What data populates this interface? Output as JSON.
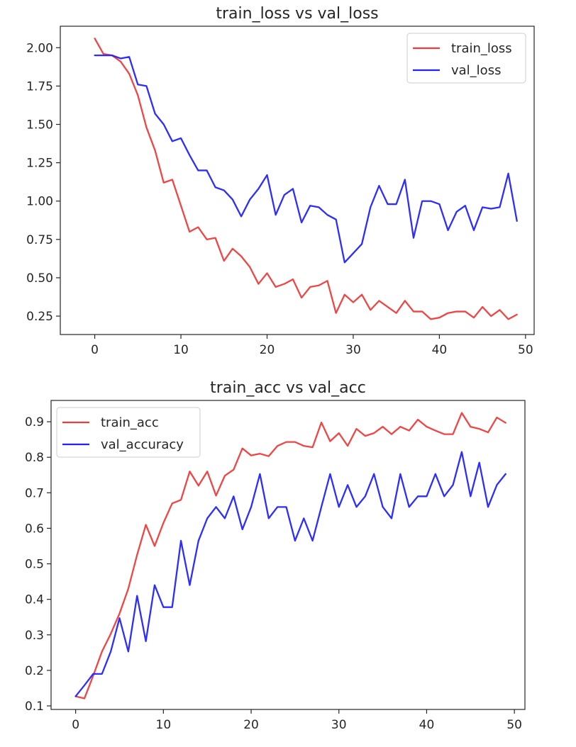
{
  "colors": {
    "train": "#ee3b3b",
    "val": "#2222ff",
    "axis": "#262626",
    "legend_border": "#cccccc"
  },
  "chart_data": [
    {
      "type": "line",
      "title": "train_loss vs val_loss",
      "xlabel": "",
      "ylabel": "",
      "xlim": [
        -4,
        51
      ],
      "ylim": [
        0.13,
        2.14
      ],
      "x_ticks": [
        0,
        10,
        20,
        30,
        40,
        50
      ],
      "y_ticks": [
        0.25,
        0.5,
        0.75,
        1.0,
        1.25,
        1.5,
        1.75,
        2.0
      ],
      "y_tick_labels": [
        "0.25",
        "0.50",
        "0.75",
        "1.00",
        "1.25",
        "1.50",
        "1.75",
        "2.00"
      ],
      "x_tick_labels": [
        "0",
        "10",
        "20",
        "30",
        "40",
        "50"
      ],
      "grid": false,
      "legend_position": "upper right",
      "x": [
        0,
        1,
        2,
        3,
        4,
        5,
        6,
        7,
        8,
        9,
        10,
        11,
        12,
        13,
        14,
        15,
        16,
        17,
        18,
        19,
        20,
        21,
        22,
        23,
        24,
        25,
        26,
        27,
        28,
        29,
        30,
        31,
        32,
        33,
        34,
        35,
        36,
        37,
        38,
        39,
        40,
        41,
        42,
        43,
        44,
        45,
        46,
        47,
        48,
        49
      ],
      "series": [
        {
          "name": "train_loss",
          "color_key": "train",
          "values": [
            2.06,
            1.96,
            1.95,
            1.91,
            1.83,
            1.69,
            1.48,
            1.33,
            1.12,
            1.14,
            0.97,
            0.8,
            0.83,
            0.75,
            0.76,
            0.61,
            0.69,
            0.64,
            0.57,
            0.46,
            0.53,
            0.44,
            0.46,
            0.49,
            0.37,
            0.44,
            0.45,
            0.48,
            0.27,
            0.39,
            0.34,
            0.39,
            0.29,
            0.35,
            0.31,
            0.27,
            0.35,
            0.28,
            0.28,
            0.23,
            0.24,
            0.27,
            0.28,
            0.28,
            0.24,
            0.31,
            0.25,
            0.29,
            0.23,
            0.26
          ]
        },
        {
          "name": "val_loss",
          "color_key": "val",
          "values": [
            1.95,
            1.95,
            1.95,
            1.93,
            1.94,
            1.76,
            1.75,
            1.57,
            1.5,
            1.39,
            1.41,
            1.3,
            1.2,
            1.2,
            1.09,
            1.07,
            1.01,
            0.9,
            1.01,
            1.08,
            1.17,
            0.91,
            1.04,
            1.08,
            0.86,
            0.97,
            0.96,
            0.91,
            0.88,
            0.6,
            0.66,
            0.72,
            0.96,
            1.1,
            0.98,
            0.98,
            1.14,
            0.76,
            1.0,
            1.0,
            0.98,
            0.81,
            0.93,
            0.97,
            0.81,
            0.96,
            0.95,
            0.96,
            1.18,
            0.87
          ]
        }
      ]
    },
    {
      "type": "line",
      "title": "train_acc vs val_acc",
      "xlabel": "",
      "ylabel": "",
      "xlim": [
        -2.8,
        51.2
      ],
      "ylim": [
        0.09,
        0.96
      ],
      "x_ticks": [
        0,
        10,
        20,
        30,
        40,
        50
      ],
      "y_ticks": [
        0.1,
        0.2,
        0.3,
        0.4,
        0.5,
        0.6,
        0.7,
        0.8,
        0.9
      ],
      "y_tick_labels": [
        "0.1",
        "0.2",
        "0.3",
        "0.4",
        "0.5",
        "0.6",
        "0.7",
        "0.8",
        "0.9"
      ],
      "x_tick_labels": [
        "0",
        "10",
        "20",
        "30",
        "40",
        "50"
      ],
      "grid": false,
      "legend_position": "upper left",
      "x": [
        0,
        1,
        2,
        3,
        4,
        5,
        6,
        7,
        8,
        9,
        10,
        11,
        12,
        13,
        14,
        15,
        16,
        17,
        18,
        19,
        20,
        21,
        22,
        23,
        24,
        25,
        26,
        27,
        28,
        29,
        30,
        31,
        32,
        33,
        34,
        35,
        36,
        37,
        38,
        39,
        40,
        41,
        42,
        43,
        44,
        45,
        46,
        47,
        48,
        49
      ],
      "series": [
        {
          "name": "train_acc",
          "color_key": "train",
          "values": [
            0.127,
            0.121,
            0.185,
            0.253,
            0.303,
            0.36,
            0.43,
            0.525,
            0.61,
            0.55,
            0.615,
            0.67,
            0.68,
            0.76,
            0.72,
            0.76,
            0.692,
            0.748,
            0.765,
            0.825,
            0.805,
            0.81,
            0.803,
            0.832,
            0.843,
            0.843,
            0.832,
            0.828,
            0.898,
            0.845,
            0.868,
            0.832,
            0.88,
            0.86,
            0.868,
            0.886,
            0.865,
            0.886,
            0.875,
            0.906,
            0.886,
            0.875,
            0.865,
            0.865,
            0.925,
            0.886,
            0.88,
            0.87,
            0.912,
            0.897
          ]
        },
        {
          "name": "val_accuracy",
          "color_key": "val",
          "values": [
            0.127,
            0.158,
            0.19,
            0.19,
            0.253,
            0.347,
            0.253,
            0.41,
            0.282,
            0.44,
            0.378,
            0.378,
            0.565,
            0.44,
            0.565,
            0.628,
            0.66,
            0.628,
            0.69,
            0.597,
            0.66,
            0.753,
            0.628,
            0.66,
            0.66,
            0.565,
            0.628,
            0.565,
            0.66,
            0.753,
            0.66,
            0.722,
            0.66,
            0.69,
            0.753,
            0.66,
            0.628,
            0.753,
            0.66,
            0.69,
            0.69,
            0.753,
            0.69,
            0.722,
            0.815,
            0.69,
            0.785,
            0.66,
            0.722,
            0.753
          ]
        }
      ]
    }
  ]
}
